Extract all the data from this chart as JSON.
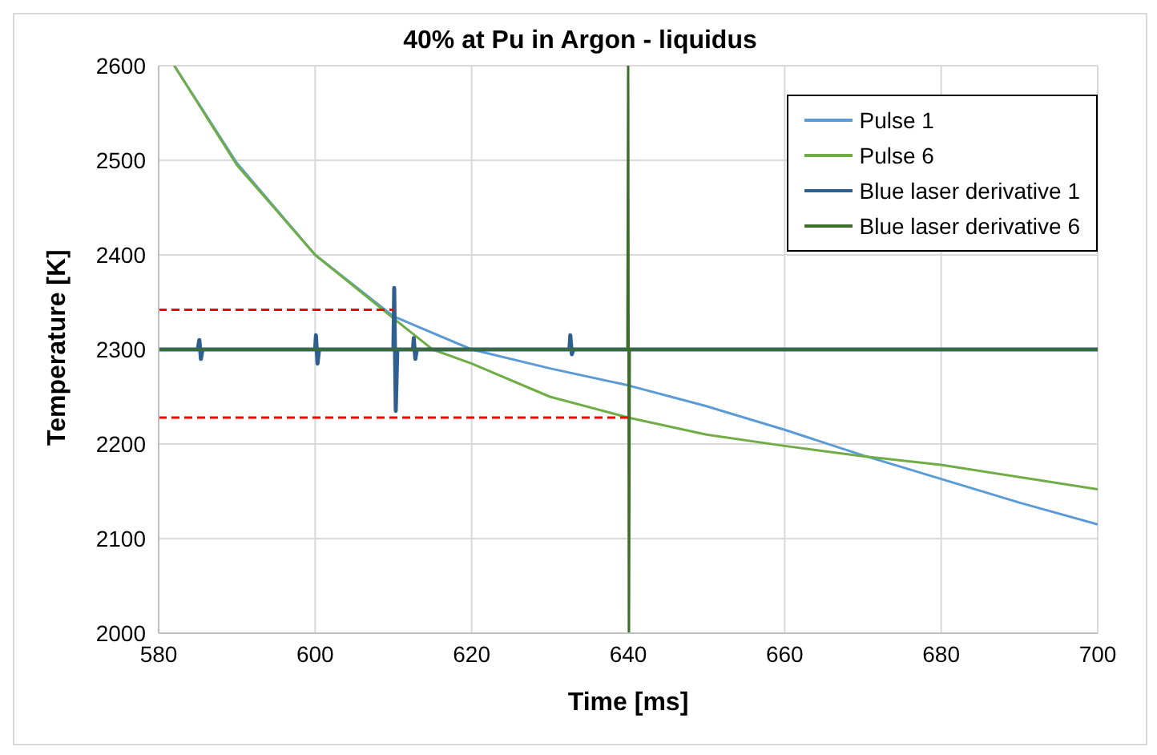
{
  "chart_data": {
    "type": "line",
    "title": "40% at Pu in Argon - liquidus",
    "xlabel": "Time [ms]",
    "ylabel": "Temperature [K]",
    "xlim": [
      580,
      700
    ],
    "xticks": [
      580,
      600,
      620,
      640,
      660,
      680,
      700
    ],
    "ylim": [
      2000,
      2600
    ],
    "yticks": [
      2000,
      2100,
      2200,
      2300,
      2400,
      2500,
      2600
    ],
    "grid": true,
    "legend": "top right",
    "marker": "none",
    "series": [
      {
        "name": "Pulse 1",
        "color": "#5b9bd5",
        "x": [
          582,
          590,
          600,
          610,
          620,
          630,
          640,
          650,
          660,
          670,
          680,
          690,
          700
        ],
        "values": [
          2600,
          2497,
          2400,
          2335,
          2300,
          2280,
          2262,
          2240,
          2215,
          2188,
          2163,
          2138,
          2115
        ]
      },
      {
        "name": "Pulse 6",
        "color": "#70ad47",
        "x": [
          582,
          590,
          600,
          610,
          615,
          620,
          630,
          640,
          650,
          660,
          670,
          680,
          690,
          700
        ],
        "values": [
          2600,
          2495,
          2400,
          2333,
          2300,
          2285,
          2250,
          2228,
          2210,
          2198,
          2187,
          2178,
          2165,
          2152
        ]
      },
      {
        "name": "Blue laser derivative 1",
        "color": "#2e5f8e",
        "x": [
          580,
          585,
          585.2,
          585.4,
          585.6,
          600,
          600.1,
          600.3,
          600.5,
          610,
          610.1,
          610.3,
          610.5,
          612.5,
          612.6,
          612.8,
          613,
          632.5,
          632.6,
          632.8,
          633,
          700
        ],
        "values": [
          2300,
          2300,
          2310,
          2290,
          2300,
          2300,
          2315,
          2285,
          2300,
          2300,
          2365,
          2235,
          2300,
          2300,
          2312,
          2290,
          2300,
          2300,
          2315,
          2295,
          2300,
          2300
        ]
      },
      {
        "name": "Blue laser derivative 6",
        "color": "#3c6e2a",
        "x": [
          580,
          639.9,
          640,
          640.1,
          640.2,
          700
        ],
        "values": [
          2300,
          2300,
          2600,
          2000,
          2300,
          2300
        ]
      },
      {
        "type": "line",
        "color": "#ff0000",
        "line_style": "dashed",
        "x": [
          580,
          610
        ],
        "values": [
          2342,
          2342
        ]
      },
      {
        "type": "line",
        "color": "#ff0000",
        "line_style": "dashed",
        "x": [
          580,
          640
        ],
        "values": [
          2228,
          2228
        ]
      }
    ]
  }
}
